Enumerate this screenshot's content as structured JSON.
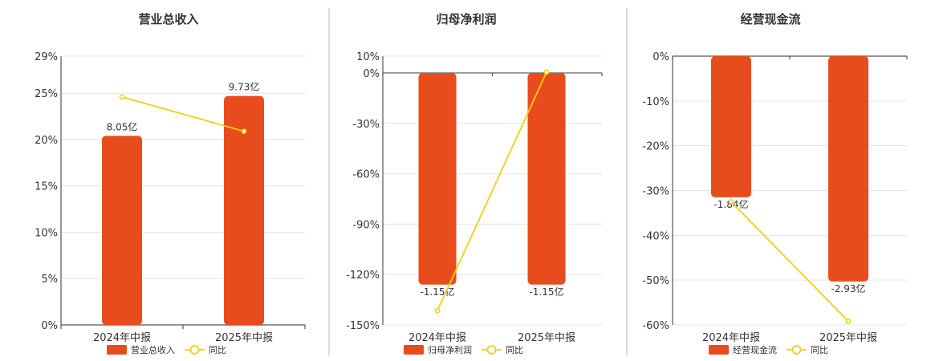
{
  "colors": {
    "bar": "#e84c1c",
    "line": "#f2cf14",
    "grid": "#e3e3ee"
  },
  "chart_data": [
    {
      "type": "bar",
      "title": "营业总收入",
      "categories": [
        "2024年中报",
        "2025年中报"
      ],
      "bar_labels": [
        "8.05亿",
        "9.73亿"
      ],
      "bar_values_pct": [
        20.4,
        24.7
      ],
      "line_values_pct": [
        24.6,
        20.9
      ],
      "ylim": [
        0,
        29
      ],
      "yticks": [
        0,
        5,
        10,
        15,
        20,
        25,
        29
      ],
      "ytick_labels": [
        "0%",
        "5%",
        "10%",
        "15%",
        "20%",
        "25%",
        "29%"
      ],
      "legend": [
        "营业总收入",
        "同比"
      ],
      "label_pos": "top"
    },
    {
      "type": "bar",
      "title": "归母净利润",
      "categories": [
        "2024年中报",
        "2025年中报"
      ],
      "bar_labels": [
        "-1.15亿",
        "-1.15亿"
      ],
      "bar_values_pct": [
        -126,
        -126
      ],
      "line_values_pct": [
        -141.5,
        0.5
      ],
      "ylim": [
        -150,
        10
      ],
      "yticks": [
        -150,
        -120,
        -90,
        -60,
        -30,
        0,
        10
      ],
      "ytick_labels": [
        "-150%",
        "-120%",
        "-90%",
        "-60%",
        "-30%",
        "0%",
        "10%"
      ],
      "legend": [
        "归母净利润",
        "同比"
      ],
      "label_pos": "bottom"
    },
    {
      "type": "bar",
      "title": "经营现金流",
      "categories": [
        "2024年中报",
        "2025年中报"
      ],
      "bar_labels": [
        "-1.84亿",
        "-2.93亿"
      ],
      "bar_values_pct": [
        -31.5,
        -50.3
      ],
      "line_values_pct": [
        -32.5,
        -59.2
      ],
      "ylim": [
        -60,
        0
      ],
      "yticks": [
        -60,
        -50,
        -40,
        -30,
        -20,
        -10,
        0
      ],
      "ytick_labels": [
        "-60%",
        "-50%",
        "-40%",
        "-30%",
        "-20%",
        "-10%",
        "0%"
      ],
      "legend": [
        "经营现金流",
        "同比"
      ],
      "label_pos": "bottom"
    }
  ]
}
